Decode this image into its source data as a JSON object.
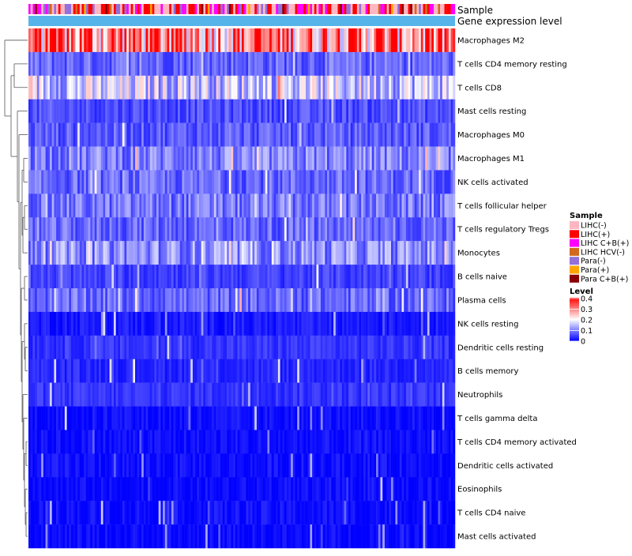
{
  "chart_data": {
    "type": "heatmap",
    "title": "",
    "annotation_tracks": [
      "Sample",
      "Gene expression level"
    ],
    "row_labels": [
      "Macrophages M2",
      "T cells CD4 memory resting",
      "T cells CD8",
      "Mast cells resting",
      "Macrophages M0",
      "Macrophages M1",
      "NK cells activated",
      "T cells follicular helper",
      "T cells regulatory  Tregs",
      "Monocytes",
      "B cells naive",
      "Plasma cells",
      "NK cells resting",
      "Dendritic cells resting",
      "B cells memory",
      "Neutrophils",
      "T cells gamma delta",
      "T cells CD4 memory activated",
      "Dendritic cells activated",
      "Eosinophils",
      "T cells CD4 naive",
      "Mast cells activated"
    ],
    "row_mean_levels": [
      0.3,
      0.08,
      0.16,
      0.06,
      0.07,
      0.1,
      0.08,
      0.09,
      0.08,
      0.11,
      0.05,
      0.08,
      0.02,
      0.04,
      0.03,
      0.04,
      0.01,
      0.01,
      0.01,
      0.005,
      0.01,
      0.005
    ],
    "color_scale": {
      "range": [
        0,
        0.4
      ],
      "low": "#0000ff",
      "mid": "#ffffff",
      "high": "#ff0000"
    },
    "legend": {
      "sample_title": "Sample",
      "sample_groups": [
        {
          "label": "LIHC(-)",
          "color": "#ffb6c1"
        },
        {
          "label": "LIHC(+)",
          "color": "#ff0000"
        },
        {
          "label": "LIHC C+B(+)",
          "color": "#ff00ff"
        },
        {
          "label": "LIHC HCV(-)",
          "color": "#d2691e"
        },
        {
          "label": "Para(-)",
          "color": "#9370db"
        },
        {
          "label": "Para(+)",
          "color": "#ffa500"
        },
        {
          "label": "Para C+B(+)",
          "color": "#8b0000"
        }
      ],
      "level_title": "Level",
      "level_ticks": [
        "0.4",
        "0.3",
        "0.2",
        "0.1",
        "0"
      ]
    },
    "gene_expression_track_color": "#56b4e9",
    "num_samples": 200
  }
}
